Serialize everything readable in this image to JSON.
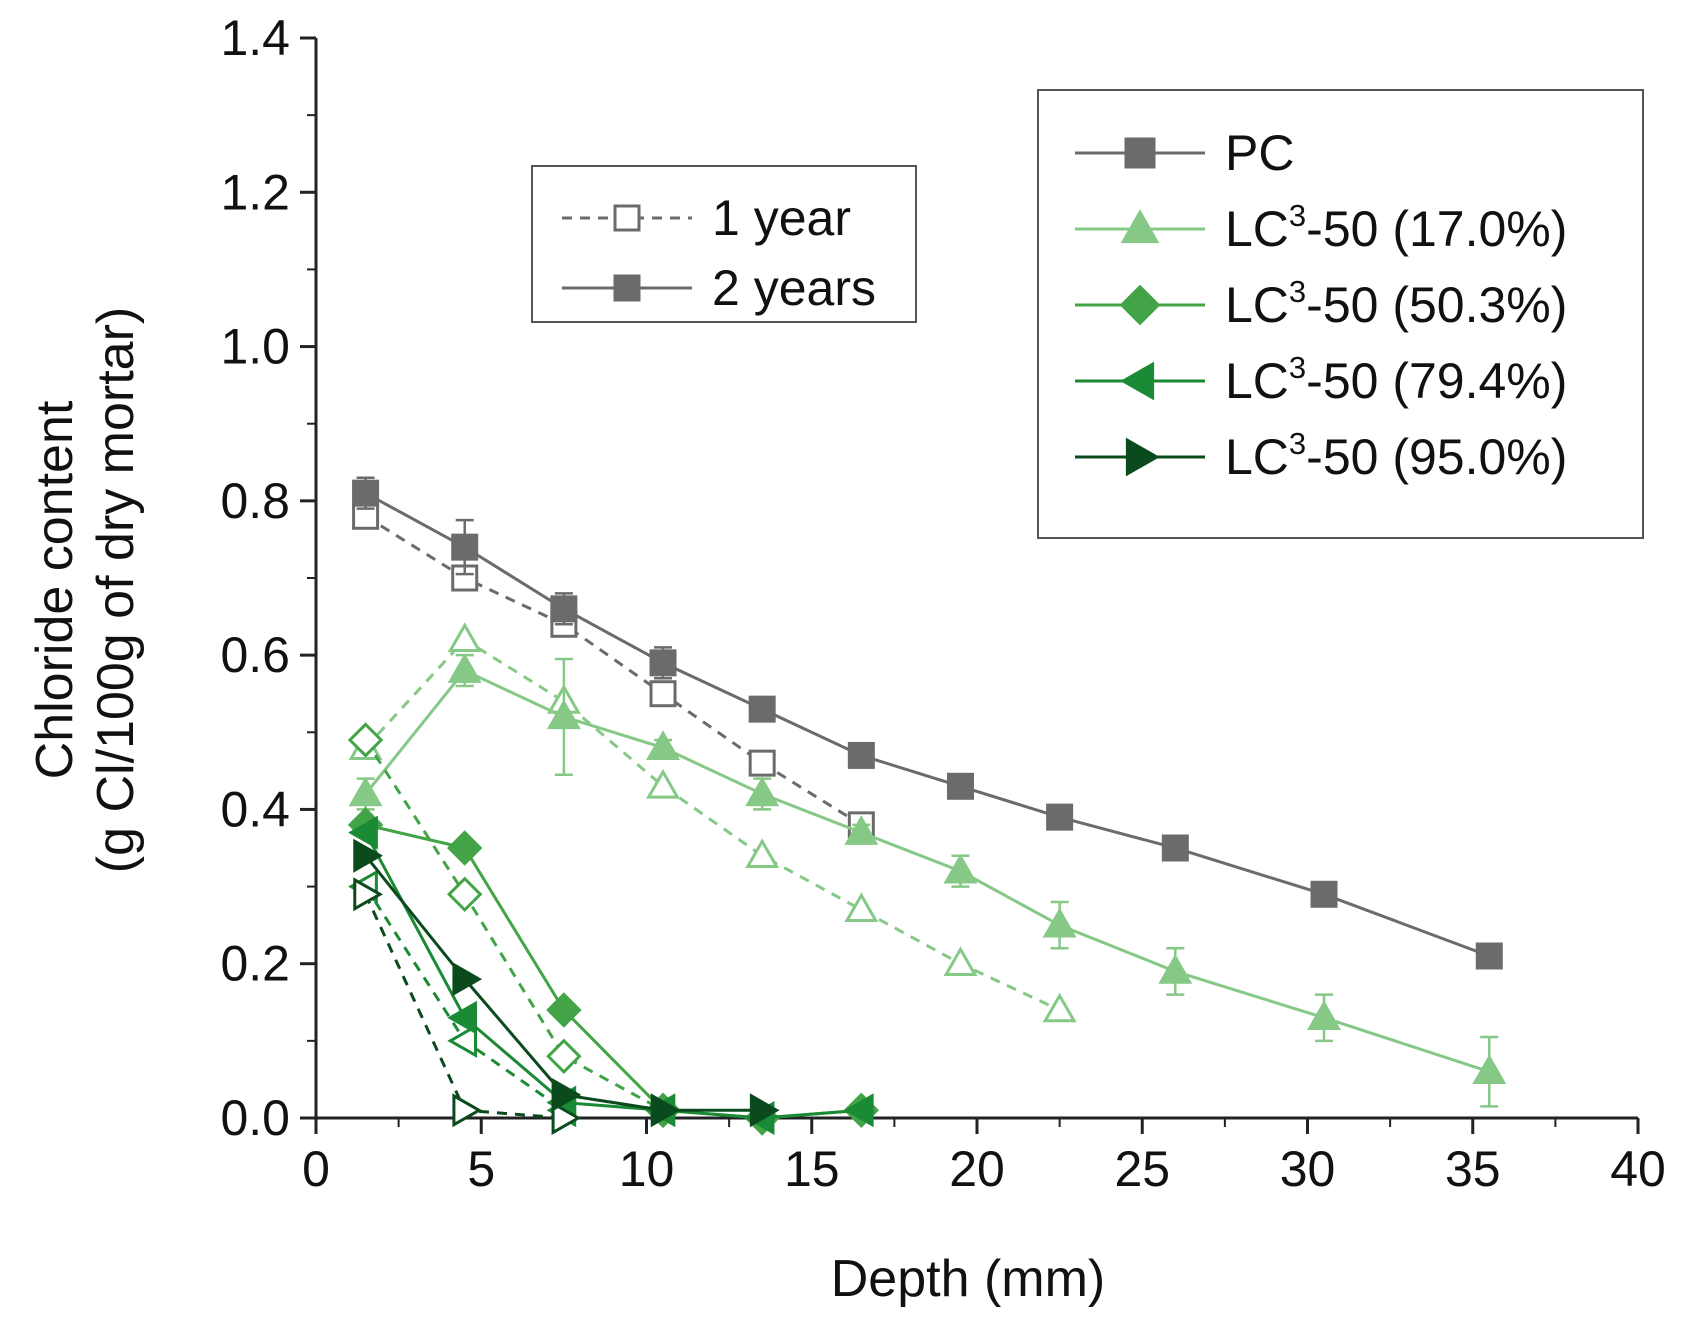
{
  "chart_data": {
    "type": "line",
    "title": "",
    "xlabel": "Depth (mm)",
    "ylabel_line1": "Chloride content",
    "ylabel_line2": "(g Cl/100g of dry mortar)",
    "xlim": [
      0,
      40
    ],
    "ylim": [
      0,
      1.4
    ],
    "x_ticks": [
      0,
      5,
      10,
      15,
      20,
      25,
      30,
      35,
      40
    ],
    "x_tick_labels": [
      "0",
      "5",
      "10",
      "15",
      "20",
      "25",
      "30",
      "35",
      "40"
    ],
    "y_ticks": [
      0,
      0.2,
      0.4,
      0.6,
      0.8,
      1.0,
      1.2,
      1.4
    ],
    "y_tick_labels": [
      "0.0",
      "0.2",
      "0.4",
      "0.6",
      "0.8",
      "1.0",
      "1.2",
      "1.4"
    ],
    "grid": false,
    "legend_series": [
      {
        "label_prefix": "PC",
        "label_sup": "",
        "label_suffix": "",
        "marker": "square",
        "color": "#6b6b6b"
      },
      {
        "label_prefix": "LC",
        "label_sup": "3",
        "label_suffix": "-50 (17.0%)",
        "marker": "triangle-up",
        "color": "#86c886"
      },
      {
        "label_prefix": "LC",
        "label_sup": "3",
        "label_suffix": "-50 (50.3%)",
        "marker": "diamond",
        "color": "#43a447"
      },
      {
        "label_prefix": "LC",
        "label_sup": "3",
        "label_suffix": "-50 (79.4%)",
        "marker": "triangle-left",
        "color": "#1a8a35"
      },
      {
        "label_prefix": "LC",
        "label_sup": "3",
        "label_suffix": "-50 (95.0%)",
        "marker": "triangle-right",
        "color": "#0b4a1d"
      }
    ],
    "legend_age": [
      {
        "label": "1 year",
        "style": "dashed",
        "filled": false,
        "color": "#6b6b6b"
      },
      {
        "label": "2 years",
        "style": "solid",
        "filled": true,
        "color": "#6b6b6b"
      }
    ],
    "series": [
      {
        "name": "PC - 1 year",
        "color": "#6b6b6b",
        "marker": "square",
        "filled": false,
        "dashed": true,
        "x": [
          1.5,
          4.5,
          7.5,
          10.5,
          13.5,
          16.5
        ],
        "y": [
          0.78,
          0.7,
          0.64,
          0.55,
          0.46,
          0.38
        ],
        "err": []
      },
      {
        "name": "PC - 2 years",
        "color": "#6b6b6b",
        "marker": "square",
        "filled": true,
        "dashed": false,
        "x": [
          1.5,
          4.5,
          7.5,
          10.5,
          13.5,
          16.5,
          19.5,
          22.5,
          26.0,
          30.5,
          35.5
        ],
        "y": [
          0.81,
          0.74,
          0.66,
          0.59,
          0.53,
          0.47,
          0.43,
          0.39,
          0.35,
          0.29,
          0.21
        ],
        "err": [
          0.02,
          0.035,
          0.02,
          0.02,
          0.015,
          0.015,
          0.01,
          0.01,
          0.01,
          0.01,
          0.01
        ]
      },
      {
        "name": "LC3-50 (17.0%) - 1 year",
        "color": "#86c886",
        "marker": "triangle-up",
        "filled": false,
        "dashed": true,
        "x": [
          1.5,
          4.5,
          7.5,
          10.5,
          13.5,
          16.5,
          19.5,
          22.5
        ],
        "y": [
          0.48,
          0.62,
          0.54,
          0.43,
          0.34,
          0.27,
          0.2,
          0.14
        ],
        "err": []
      },
      {
        "name": "LC3-50 (17.0%) - 2 years",
        "color": "#86c886",
        "marker": "triangle-up",
        "filled": true,
        "dashed": false,
        "x": [
          1.5,
          4.5,
          7.5,
          10.5,
          13.5,
          16.5,
          19.5,
          22.5,
          26.0,
          30.5,
          35.5
        ],
        "y": [
          0.42,
          0.58,
          0.52,
          0.48,
          0.42,
          0.37,
          0.32,
          0.25,
          0.19,
          0.13,
          0.06
        ],
        "err": [
          0.02,
          0.02,
          0.075,
          0.01,
          0.02,
          0.01,
          0.02,
          0.03,
          0.03,
          0.03,
          0.045
        ]
      },
      {
        "name": "LC3-50 (50.3%) - 1 year",
        "color": "#43a447",
        "marker": "diamond",
        "filled": false,
        "dashed": true,
        "x": [
          1.5,
          4.5,
          7.5,
          10.5
        ],
        "y": [
          0.49,
          0.29,
          0.08,
          0.01
        ],
        "err": []
      },
      {
        "name": "LC3-50 (50.3%) - 2 years",
        "color": "#43a447",
        "marker": "diamond",
        "filled": true,
        "dashed": false,
        "x": [
          1.5,
          4.5,
          7.5,
          10.5,
          13.5,
          16.5
        ],
        "y": [
          0.38,
          0.35,
          0.14,
          0.01,
          0.0,
          0.01
        ],
        "err": []
      },
      {
        "name": "LC3-50 (79.4%) - 1 year",
        "color": "#1a8a35",
        "marker": "triangle-left",
        "filled": false,
        "dashed": true,
        "x": [
          1.5,
          4.5,
          7.5
        ],
        "y": [
          0.3,
          0.1,
          0.01
        ],
        "err": []
      },
      {
        "name": "LC3-50 (79.4%) - 2 years",
        "color": "#1a8a35",
        "marker": "triangle-left",
        "filled": true,
        "dashed": false,
        "x": [
          1.5,
          4.5,
          7.5,
          10.5,
          13.5,
          16.5
        ],
        "y": [
          0.37,
          0.13,
          0.02,
          0.01,
          0.0,
          0.01
        ],
        "err": []
      },
      {
        "name": "LC3-50 (95.0%) - 1 year",
        "color": "#0b4a1d",
        "marker": "triangle-right",
        "filled": false,
        "dashed": true,
        "x": [
          1.5,
          4.5,
          7.5
        ],
        "y": [
          0.29,
          0.01,
          0.0
        ],
        "err": []
      },
      {
        "name": "LC3-50 (95.0%) - 2 years",
        "color": "#0b4a1d",
        "marker": "triangle-right",
        "filled": true,
        "dashed": false,
        "x": [
          1.5,
          4.5,
          7.5,
          10.5,
          13.5
        ],
        "y": [
          0.34,
          0.18,
          0.03,
          0.01,
          0.01
        ],
        "err": []
      }
    ]
  }
}
